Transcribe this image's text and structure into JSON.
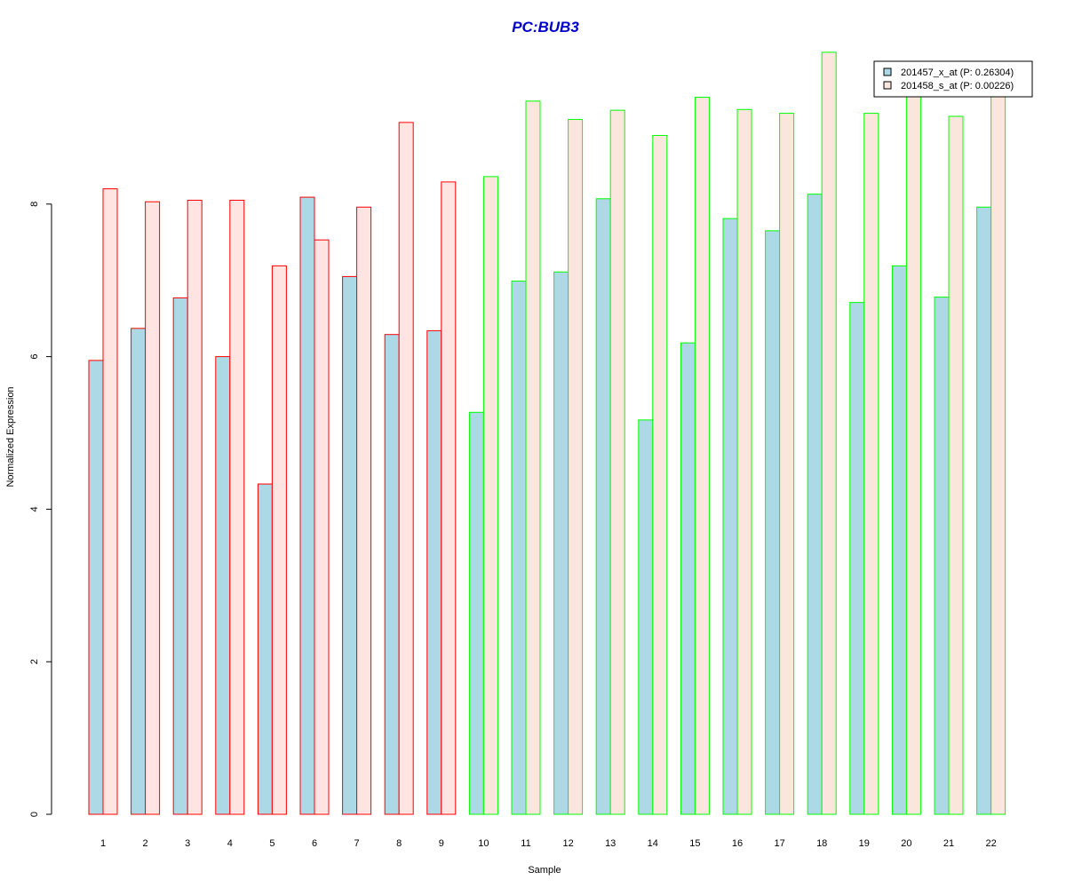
{
  "chart_data": {
    "type": "bar",
    "title": "PC:BUB3",
    "xlabel": "Sample",
    "ylabel": "Normalized Expression",
    "categories": [
      "1",
      "2",
      "3",
      "4",
      "5",
      "6",
      "7",
      "8",
      "9",
      "10",
      "11",
      "12",
      "13",
      "14",
      "15",
      "16",
      "17",
      "18",
      "19",
      "20",
      "21",
      "22"
    ],
    "yticks": [
      0,
      2,
      4,
      6,
      8
    ],
    "ylim": [
      0,
      10
    ],
    "series": [
      {
        "name": "201457_x_at (P: 0.26304)",
        "fill": "#add8e6",
        "values": [
          5.95,
          6.37,
          6.77,
          6.0,
          4.33,
          8.09,
          7.05,
          6.29,
          6.34,
          5.27,
          6.99,
          7.11,
          8.07,
          5.17,
          6.18,
          7.81,
          7.65,
          8.13,
          6.71,
          7.19,
          6.78,
          7.96
        ]
      },
      {
        "name": "201458_s_at (P: 0.00226)",
        "fill_group1": "#ffe4e1",
        "fill_group2": "#fbe6dd",
        "values": [
          8.2,
          8.03,
          8.05,
          8.05,
          7.19,
          7.53,
          7.96,
          9.07,
          8.29,
          8.36,
          9.35,
          9.11,
          9.23,
          8.9,
          9.4,
          9.24,
          9.19,
          9.99,
          9.19,
          9.5,
          9.15,
          9.5
        ]
      }
    ],
    "group_border_colors": [
      "#ff0000",
      "#ff0000",
      "#ff0000",
      "#ff0000",
      "#ff0000",
      "#ff0000",
      "#ff0000",
      "#ff0000",
      "#ff0000",
      "#00ff00",
      "#00ff00",
      "#00ff00",
      "#00ff00",
      "#00ff00",
      "#00ff00",
      "#00ff00",
      "#00ff00",
      "#00ff00",
      "#00ff00",
      "#00ff00",
      "#00ff00",
      "#00ff00"
    ],
    "title_color": "#0000cc",
    "legend_position": "top-right",
    "grid": false
  }
}
